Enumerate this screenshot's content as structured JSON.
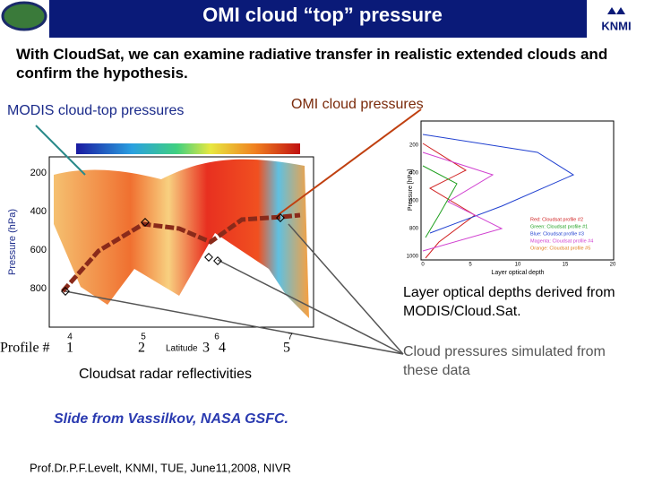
{
  "header": {
    "title": "OMI cloud “top” pressure",
    "logo": "KNMI"
  },
  "intro": "With CloudSat, we can examine radiative transfer in realistic extended clouds and confirm the hypothesis.",
  "labels": {
    "modis": "MODIS cloud-top pressures",
    "omi": "OMI cloud pressures"
  },
  "radar": {
    "y_axis_label": "Pressure (hPa)",
    "yticks": [
      "200",
      "400",
      "600",
      "800"
    ],
    "x_axis_label": "Latitude",
    "xticks": [
      "4",
      "5",
      "6",
      "7"
    ],
    "profile_label": "Profile #",
    "profiles": [
      "1",
      "2",
      "3",
      "4",
      "5"
    ],
    "caption": "Cloudsat radar reflectivities"
  },
  "profile_plot": {
    "y_axis_label": "Pressure [hPa]",
    "yticks": [
      "200",
      "400",
      "600",
      "800",
      "1000"
    ],
    "x_axis_label": "Layer optical depth",
    "xticks": [
      "0",
      "5",
      "10",
      "15",
      "20"
    ],
    "legend": [
      "Red: Cloudsat profile #2",
      "Green: Cloudsat profile #1",
      "Blue: Cloudsat profile #3",
      "Magenta: Cloudsat profile #4",
      "Orange: Cloudsat profile #5"
    ]
  },
  "captions": {
    "optical_depths": "Layer optical depths derived from MODIS/Cloud.Sat.",
    "simulated": "Cloud pressures simulated from these data"
  },
  "credit": "Slide from Vassilkov, NASA GSFC.",
  "footer": "Prof.Dr.P.F.Levelt, KNMI, TUE, June11,2008, NIVR"
}
